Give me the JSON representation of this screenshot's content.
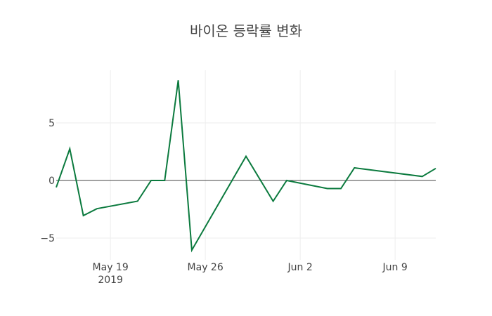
{
  "chart_data": {
    "type": "line",
    "title": "바이온 등락률 변화",
    "xlabel": "",
    "ylabel": "",
    "x": [
      "2019-05-15",
      "2019-05-16",
      "2019-05-17",
      "2019-05-18",
      "2019-05-21",
      "2019-05-22",
      "2019-05-23",
      "2019-05-24",
      "2019-05-25",
      "2019-05-29",
      "2019-05-31",
      "2019-06-01",
      "2019-06-04",
      "2019-06-05",
      "2019-06-06",
      "2019-06-11",
      "2019-06-12"
    ],
    "series": [
      {
        "name": "등락률",
        "color": "#0b7a3e",
        "values": [
          -0.6,
          2.75,
          -3.05,
          -2.45,
          -1.8,
          0,
          0,
          8.7,
          -6.05,
          2.1,
          -1.8,
          0,
          -0.7,
          -0.7,
          1.1,
          0.35,
          1.05
        ]
      }
    ],
    "x_ticks": [
      {
        "label": "May 19",
        "sub": "2019",
        "date": "2019-05-19"
      },
      {
        "label": "May 26",
        "date": "2019-05-26"
      },
      {
        "label": "Jun 2",
        "date": "2019-06-02"
      },
      {
        "label": "Jun 9",
        "date": "2019-06-09"
      }
    ],
    "y_ticks": [
      {
        "label": "5",
        "value": 5
      },
      {
        "label": "0",
        "value": 0
      },
      {
        "label": "−5",
        "value": -5
      }
    ],
    "ylim": [
      -6.5,
      9.5
    ],
    "xlim": [
      "2019-05-15",
      "2019-06-12"
    ],
    "grid": true,
    "legend": false,
    "zero_line": true
  }
}
